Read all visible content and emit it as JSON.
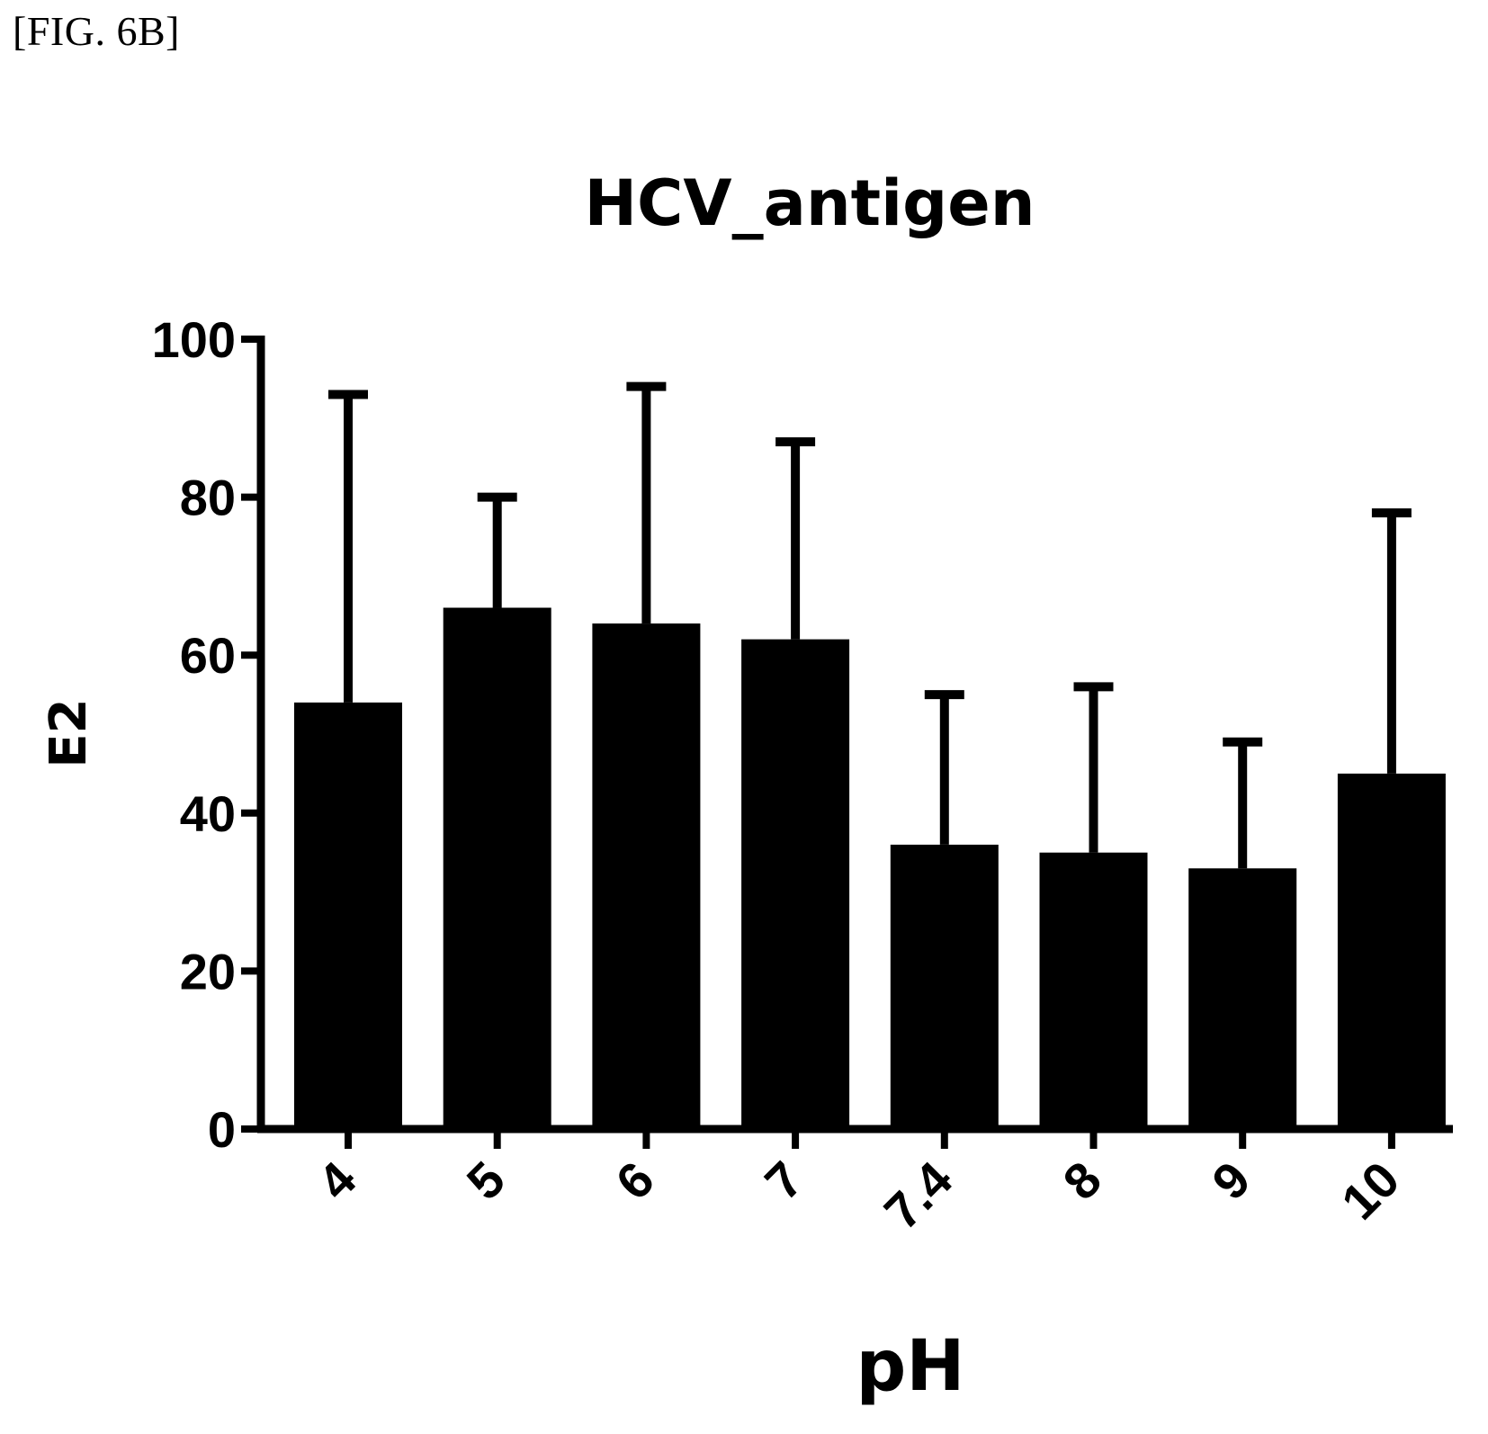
{
  "figure_label": "[FIG. 6B]",
  "chart_data": {
    "type": "bar",
    "title": "HCV_antigen",
    "xlabel": "pH",
    "ylabel": "E2",
    "categories": [
      "4",
      "5",
      "6",
      "7",
      "7.4",
      "8",
      "9",
      "10"
    ],
    "values": [
      54,
      66,
      64,
      62,
      36,
      35,
      33,
      45
    ],
    "error_upper": [
      93,
      80,
      94,
      87,
      55,
      56,
      49,
      78
    ],
    "ylim": [
      0,
      100
    ],
    "yticks": [
      "0",
      "20",
      "40",
      "60",
      "80",
      "100"
    ],
    "grid": false,
    "bar_color": "#000000"
  }
}
